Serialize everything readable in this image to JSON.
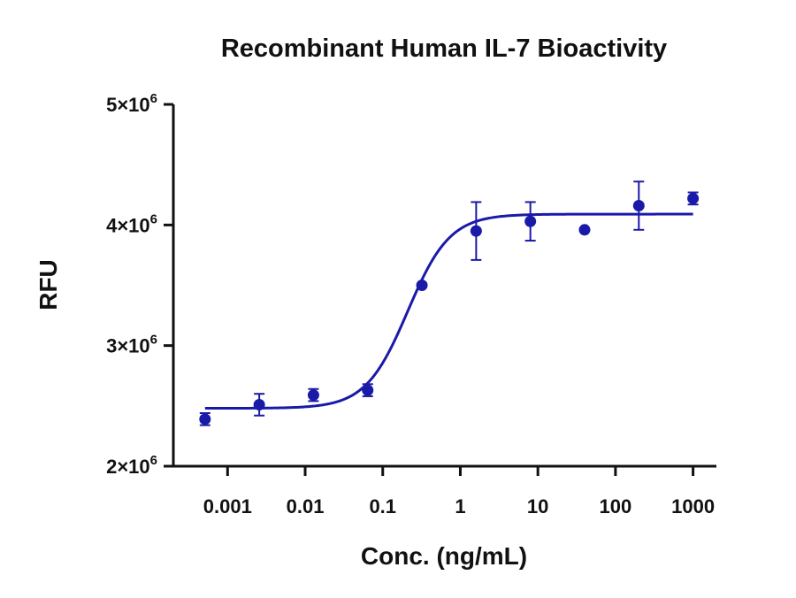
{
  "chart_data": {
    "type": "scatter",
    "title": "Recombinant Human IL-7 Bioactivity",
    "xlabel": "Conc. (ng/mL)",
    "ylabel": "RFU",
    "x_scale": "log",
    "xlim": [
      0.0002,
      2000
    ],
    "ylim": [
      2000000,
      5000000
    ],
    "x_ticks": [
      {
        "value": 0.001,
        "label": "0.001"
      },
      {
        "value": 0.01,
        "label": "0.01"
      },
      {
        "value": 0.1,
        "label": "0.1"
      },
      {
        "value": 1,
        "label": "1"
      },
      {
        "value": 10,
        "label": "10"
      },
      {
        "value": 100,
        "label": "100"
      },
      {
        "value": 1000,
        "label": "1000"
      }
    ],
    "y_ticks": [
      {
        "value": 2000000,
        "mantissa": "2×10",
        "exponent": "6"
      },
      {
        "value": 3000000,
        "mantissa": "3×10",
        "exponent": "6"
      },
      {
        "value": 4000000,
        "mantissa": "4×10",
        "exponent": "6"
      },
      {
        "value": 5000000,
        "mantissa": "5×10",
        "exponent": "6"
      }
    ],
    "color": "#1a1aa8",
    "points": [
      {
        "x": 0.000512,
        "y": 2390000,
        "err": 50000
      },
      {
        "x": 0.00256,
        "y": 2510000,
        "err": 90000
      },
      {
        "x": 0.0128,
        "y": 2590000,
        "err": 50000
      },
      {
        "x": 0.064,
        "y": 2630000,
        "err": 50000
      },
      {
        "x": 0.32,
        "y": 3500000,
        "err": 0
      },
      {
        "x": 1.6,
        "y": 3950000,
        "err": 240000
      },
      {
        "x": 8,
        "y": 4030000,
        "err": 160000
      },
      {
        "x": 40,
        "y": 3960000,
        "err": 0
      },
      {
        "x": 200,
        "y": 4160000,
        "err": 200000
      },
      {
        "x": 1000,
        "y": 4220000,
        "err": 50000
      }
    ],
    "fit": {
      "model": "4PL",
      "bottom": 2480000,
      "top": 4090000,
      "ec50": 0.21,
      "hill": 1.6,
      "x_range": [
        0.000512,
        1000
      ]
    },
    "grid": false,
    "legend": "none"
  }
}
